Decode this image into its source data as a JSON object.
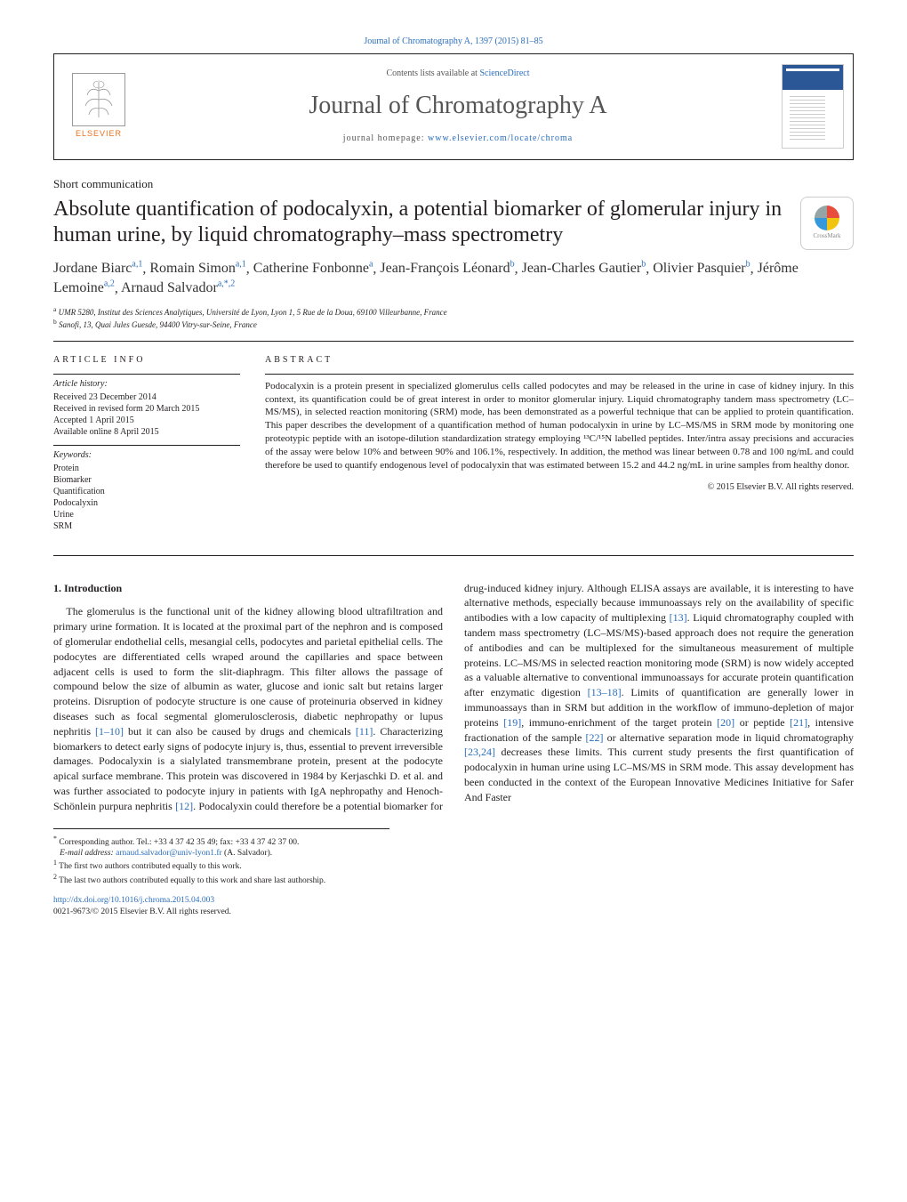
{
  "journal_header": "Journal of Chromatography A, 1397 (2015) 81–85",
  "contents_box": {
    "contents_prefix": "Contents lists available at ",
    "contents_link": "ScienceDirect",
    "journal_name": "Journal of Chromatography A",
    "homepage_prefix": "journal homepage: ",
    "homepage_link": "www.elsevier.com/locate/chroma",
    "publisher_logo_text": "ELSEVIER"
  },
  "article_type": "Short communication",
  "title": "Absolute quantification of podocalyxin, a potential biomarker of glomerular injury in human urine, by liquid chromatography–mass spectrometry",
  "crossmark_label": "CrossMark",
  "authors_html": "Jordane Biarc",
  "authors": [
    {
      "name": "Jordane Biarc",
      "sup": "a,1"
    },
    {
      "name": "Romain Simon",
      "sup": "a,1"
    },
    {
      "name": "Catherine Fonbonne",
      "sup": "a"
    },
    {
      "name": "Jean-François Léonard",
      "sup": "b"
    },
    {
      "name": "Jean-Charles Gautier",
      "sup": "b"
    },
    {
      "name": "Olivier Pasquier",
      "sup": "b"
    },
    {
      "name": "Jérôme Lemoine",
      "sup": "a,2"
    },
    {
      "name": "Arnaud Salvador",
      "sup": "a,*,2"
    }
  ],
  "affiliations": {
    "a": "UMR 5280, Institut des Sciences Analytiques, Université de Lyon, Lyon 1, 5 Rue de la Doua, 69100 Villeurbanne, France",
    "b": "Sanofi, 13, Quai Jules Guesde, 94400 Vitry-sur-Seine, France"
  },
  "article_info": {
    "heading": "article info",
    "history_label": "Article history:",
    "received": "Received 23 December 2014",
    "revised": "Received in revised form 20 March 2015",
    "accepted": "Accepted 1 April 2015",
    "online": "Available online 8 April 2015",
    "keywords_label": "Keywords:",
    "keywords": [
      "Protein",
      "Biomarker",
      "Quantification",
      "Podocalyxin",
      "Urine",
      "SRM"
    ]
  },
  "abstract": {
    "heading": "abstract",
    "text": "Podocalyxin is a protein present in specialized glomerulus cells called podocytes and may be released in the urine in case of kidney injury. In this context, its quantification could be of great interest in order to monitor glomerular injury. Liquid chromatography tandem mass spectrometry (LC–MS/MS), in selected reaction monitoring (SRM) mode, has been demonstrated as a powerful technique that can be applied to protein quantification. This paper describes the development of a quantification method of human podocalyxin in urine by LC–MS/MS in SRM mode by monitoring one proteotypic peptide with an isotope-dilution standardization strategy employing ¹³C/¹⁵N labelled peptides. Inter/intra assay precisions and accuracies of the assay were below 10% and between 90% and 106.1%, respectively. In addition, the method was linear between 0.78 and 100 ng/mL and could therefore be used to quantify endogenous level of podocalyxin that was estimated between 15.2 and 44.2 ng/mL in urine samples from healthy donor.",
    "copyright": "© 2015 Elsevier B.V. All rights reserved."
  },
  "section1": {
    "heading": "1. Introduction",
    "p1": "The glomerulus is the functional unit of the kidney allowing blood ultrafiltration and primary urine formation. It is located at the proximal part of the nephron and is composed of glomerular endothelial cells, mesangial cells, podocytes and parietal epithelial cells. The podocytes are differentiated cells wraped around the capillaries and space between adjacent cells is used to form the slit-diaphragm. This filter allows the passage of compound below the size of albumin as water, glucose and ionic salt but retains larger proteins. Disruption of podocyte structure is one cause of proteinuria observed in kidney diseases such as focal segmental glomerulosclerosis, diabetic nephropathy or lupus nephritis ",
    "cite1": "[1–10]",
    "p1b": " but it can also be caused by drugs and chemicals ",
    "cite2": "[11]",
    "p1c": ". Characterizing biomarkers to detect early signs of podocyte injury is, thus, essential to prevent irreversible damages. Podocalyxin is a sialylated transmembrane protein, present at the podocyte apical surface membrane. This protein was discovered in 1984 by Kerjaschki D. et al. and was further associated to podocyte injury in patients with IgA nephropathy and Henoch-Schönlein purpura nephritis ",
    "cite3": "[12]",
    "p1d": ". Podocalyxin could therefore be a potential biomarker for drug-induced kidney injury. Although ELISA assays are available, it is interesting to have alternative methods, especially because immunoassays rely on the availability of specific antibodies with a low capacity of multiplexing ",
    "cite4": "[13]",
    "p1e": ". Liquid chromatography coupled with tandem mass spectrometry (LC–MS/MS)-based approach does not require the generation of antibodies and can be multiplexed for the simultaneous measurement of multiple proteins. LC–MS/MS in selected reaction monitoring mode (SRM) is now widely accepted as a valuable alternative to conventional immunoassays for accurate protein quantification after enzymatic digestion ",
    "cite5": "[13–18]",
    "p1f": ". Limits of quantification are generally lower in immunoassays than in SRM but addition in the workflow of immuno-depletion of major proteins ",
    "cite6": "[19]",
    "p1g": ", immuno-enrichment of the target protein ",
    "cite7": "[20]",
    "p1h": " or peptide ",
    "cite8": "[21]",
    "p1i": ", intensive fractionation of the sample ",
    "cite9": "[22]",
    "p1j": " or alternative separation mode in liquid chromatography ",
    "cite10": "[23,24]",
    "p1k": " decreases these limits. This current study presents the first quantification of podocalyxin in human urine using LC–MS/MS in SRM mode. This assay development has been conducted in the context of the European Innovative Medicines Initiative for Safer And Faster"
  },
  "footnotes": {
    "corr": "Corresponding author. Tel.: +33 4 37 42 35 49; fax: +33 4 37 42 37 00.",
    "email_label": "E-mail address: ",
    "email": "arnaud.salvador@univ-lyon1.fr",
    "email_name": " (A. Salvador).",
    "n1": "The first two authors contributed equally to this work.",
    "n2": "The last two authors contributed equally to this work and share last authorship."
  },
  "bottom": {
    "doi": "http://dx.doi.org/10.1016/j.chroma.2015.04.003",
    "issn": "0021-9673/© 2015 Elsevier B.V. All rights reserved."
  },
  "colors": {
    "link": "#2a6ebb",
    "text": "#231f20",
    "orange": "#e9711c"
  }
}
